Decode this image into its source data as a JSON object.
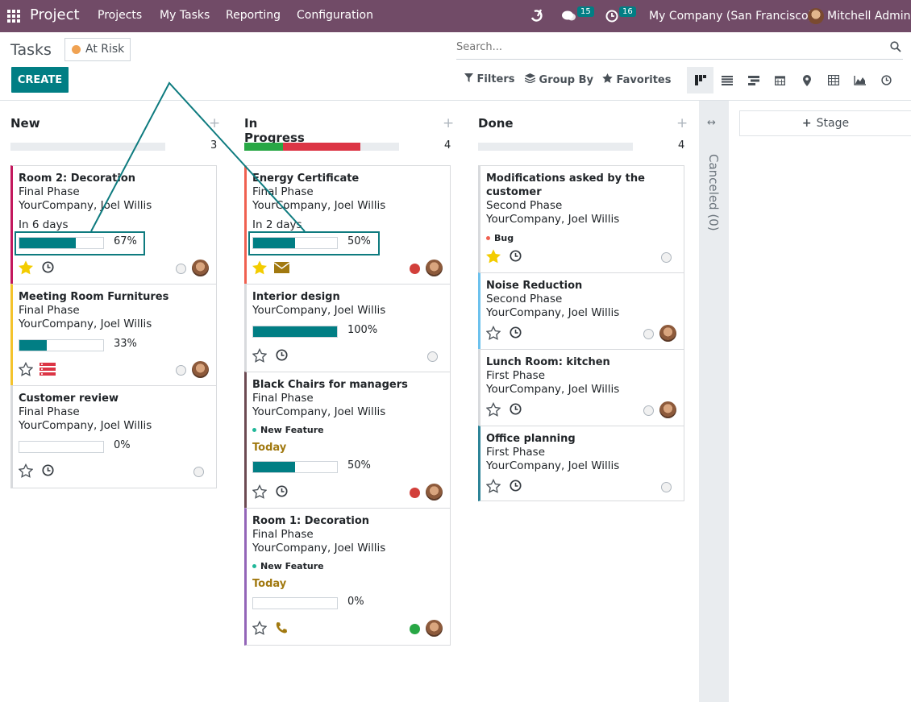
{
  "nav": {
    "brand": "Project",
    "menu": [
      "Projects",
      "My Tasks",
      "Reporting",
      "Configuration"
    ],
    "messages_count": "15",
    "activities_count": "16",
    "company": "My Company (San Francisco)",
    "user": "Mitchell Admin"
  },
  "control": {
    "title": "Tasks",
    "facet": "At Risk",
    "create": "CREATE",
    "search_placeholder": "Search...",
    "filters": "Filters",
    "group_by": "Group By",
    "favorites": "Favorites",
    "views": [
      "kanban",
      "list",
      "gantt",
      "calendar",
      "map",
      "pivot",
      "graph",
      "activity"
    ],
    "active_view": "kanban"
  },
  "columns": [
    {
      "name": "New",
      "count": "3",
      "progress": [],
      "cards": [
        {
          "title": "Room 2: Decoration",
          "lines": [
            "Final Phase",
            "YourCompany, Joel Willis"
          ],
          "deadline": "In 6 days",
          "progress": 0.67,
          "progress_label": "67%",
          "starred": true,
          "activity": "clock",
          "status": "grey",
          "avatar": true,
          "border": "#c3185d"
        },
        {
          "title": "Meeting Room Furnitures",
          "lines": [
            "Final Phase",
            "YourCompany, Joel Willis"
          ],
          "progress": 0.33,
          "progress_label": "33%",
          "starred": false,
          "activity": "todo-list",
          "status": "grey",
          "avatar": true,
          "border": "#f4c32c"
        },
        {
          "title": "Customer review",
          "lines": [
            "Final Phase",
            "YourCompany, Joel Willis"
          ],
          "progress": 0,
          "progress_label": "0%",
          "starred": false,
          "activity": "clock",
          "status": "grey",
          "avatar": false,
          "border": "#d8dadd"
        }
      ]
    },
    {
      "name": "In Progress",
      "count": "4",
      "progress": [
        {
          "color": "#28a745",
          "frac": 0.25
        },
        {
          "color": "#dc3545",
          "frac": 0.5
        }
      ],
      "cards": [
        {
          "title": "Energy Certificate",
          "lines": [
            "Final Phase",
            "YourCompany, Joel Willis"
          ],
          "deadline": "In 2 days",
          "progress": 0.5,
          "progress_label": "50%",
          "starred": true,
          "activity": "envelope",
          "status": "red",
          "avatar": true,
          "border": "#f06050"
        },
        {
          "title": "Interior design",
          "lines": [
            "YourCompany, Joel Willis"
          ],
          "progress": 1,
          "progress_label": "100%",
          "starred": false,
          "activity": "clock",
          "status": "grey",
          "avatar": false,
          "border": "#d8dadd"
        },
        {
          "title": "Black Chairs for managers",
          "lines": [
            "Final Phase",
            "YourCompany, Joel Willis"
          ],
          "tag": {
            "label": "New Feature",
            "color": "#21b799"
          },
          "today": "Today",
          "progress": 0.5,
          "progress_label": "50%",
          "starred": false,
          "activity": "clock",
          "status": "red",
          "avatar": true,
          "border": "#6c4a52"
        },
        {
          "title": "Room 1: Decoration",
          "lines": [
            "Final Phase",
            "YourCompany, Joel Willis"
          ],
          "tag": {
            "label": "New Feature",
            "color": "#21b799"
          },
          "today": "Today",
          "progress": 0,
          "progress_label": "0%",
          "starred": false,
          "activity": "phone",
          "status": "green",
          "avatar": true,
          "border": "#9365b8"
        }
      ]
    },
    {
      "name": "Done",
      "count": "4",
      "progress": [],
      "cards": [
        {
          "title": "Modifications asked by the",
          "title2": "customer",
          "lines": [
            "Second Phase",
            "YourCompany, Joel Willis"
          ],
          "tag": {
            "label": "Bug",
            "color": "#f06050"
          },
          "starred": true,
          "activity": "clock",
          "status": "grey",
          "avatar": false,
          "border": "#d8dadd"
        },
        {
          "title": "Noise Reduction",
          "lines": [
            "Second Phase",
            "YourCompany, Joel Willis"
          ],
          "starred": false,
          "activity": "clock",
          "status": "grey",
          "avatar": true,
          "border": "#6cc1ed"
        },
        {
          "title": "Lunch Room: kitchen",
          "lines": [
            "First Phase",
            "YourCompany, Joel Willis"
          ],
          "starred": false,
          "activity": "clock",
          "status": "grey",
          "avatar": true,
          "border": "#d8dadd"
        },
        {
          "title": "Office planning",
          "lines": [
            "First Phase",
            "YourCompany, Joel Willis"
          ],
          "starred": false,
          "activity": "clock",
          "status": "grey",
          "avatar": false,
          "border": "#2c8397"
        }
      ]
    }
  ],
  "folded": {
    "label": "Canceled (0)"
  },
  "add_stage": "Stage",
  "colors": {
    "brand": "#714b67",
    "accent": "#017e84",
    "annotation": "#0e7b7f"
  }
}
